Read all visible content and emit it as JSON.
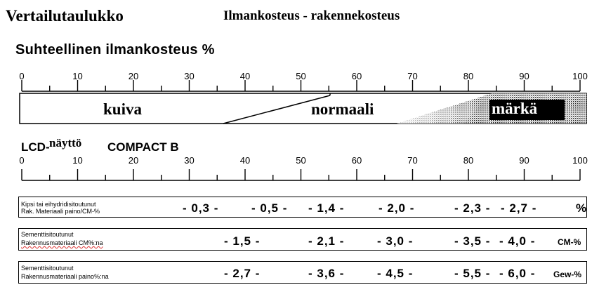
{
  "title": "Vertailutaulukko",
  "subtitle": "Ilmankosteus  - rakennekosteus",
  "rh_title": "Suhteellinen ilmankosteus  %",
  "scale_ticks": [
    "0",
    "10",
    "20",
    "30",
    "40",
    "50",
    "60",
    "70",
    "80",
    "90",
    "100"
  ],
  "humidity_zones": {
    "dry": "kuiva",
    "normal": "normaali",
    "wet": "märkä"
  },
  "lcd": {
    "part1": "LCD-",
    "part2": "näyttö",
    "part3": "COMPACT B"
  },
  "rows": [
    {
      "label_line1": "Kipsi tai eihydridisitoutunut",
      "label_line2": "Rak. Materiaali paino/CM-%",
      "values": [
        "- 0,3 -",
        "- 0,5 -",
        "- 1,4 -",
        "- 2,0 -",
        "- 2,3 -",
        "- 2,7 -"
      ],
      "unit": "%"
    },
    {
      "label_line1": "Sementtisitoutunut",
      "label_line2": "Rakennusmateriaali CM%:na",
      "values": [
        "- 1,5 -",
        "- 2,1 -",
        "- 3,0 -",
        "- 3,5 -",
        "- 4,0 -"
      ],
      "unit": "CM-%"
    },
    {
      "label_line1": "Sementtisitoutunut",
      "label_line2": "Rakennusmateriaali paino%:na",
      "values": [
        "- 2,7 -",
        "- 3,6 -",
        "- 4,5 -",
        "- 5,5 -",
        "- 6,0 -"
      ],
      "unit": "Gew-%"
    }
  ]
}
